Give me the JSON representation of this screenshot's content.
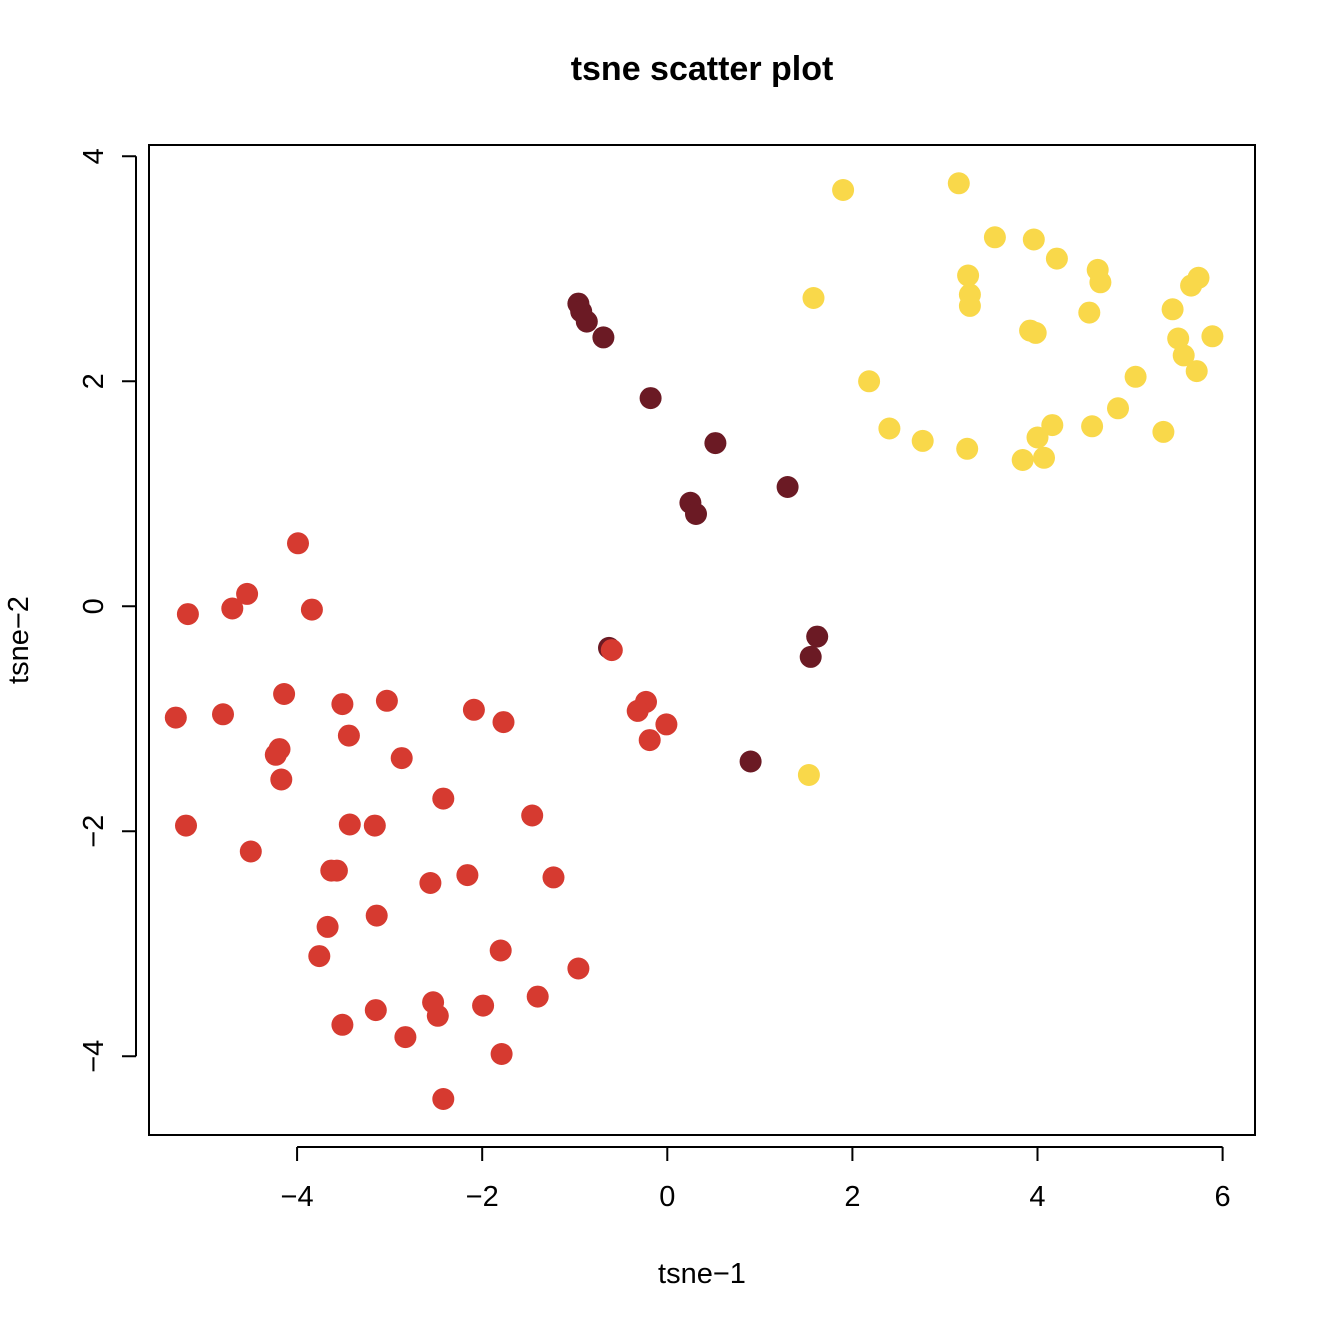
{
  "chart_data": {
    "type": "scatter",
    "title": "tsne scatter plot",
    "xlabel": "tsne−1",
    "ylabel": "tsne−2",
    "xlim": [
      -5.6,
      6.35
    ],
    "ylim": [
      -4.7,
      4.1
    ],
    "xticks": [
      -4,
      -2,
      0,
      2,
      4,
      6
    ],
    "yticks": [
      -4,
      -2,
      0,
      2,
      4
    ],
    "xtick_labels": [
      "−4",
      "−2",
      "0",
      "2",
      "4",
      "6"
    ],
    "ytick_labels": [
      "−4",
      "−2",
      "0",
      "2",
      "4"
    ],
    "grid": false,
    "series": [
      {
        "color": "#6B1A24",
        "points": [
          [
            -0.96,
            2.69
          ],
          [
            -0.93,
            2.62
          ],
          [
            -0.87,
            2.53
          ],
          [
            -0.69,
            2.39
          ],
          [
            -0.18,
            1.85
          ],
          [
            0.52,
            1.45
          ],
          [
            0.25,
            0.92
          ],
          [
            0.31,
            0.82
          ],
          [
            1.3,
            1.06
          ],
          [
            1.62,
            -0.27
          ],
          [
            1.55,
            -0.45
          ],
          [
            -0.63,
            -0.37
          ],
          [
            0.9,
            -1.38
          ]
        ]
      },
      {
        "color": "#D63A30",
        "points": [
          [
            -3.99,
            0.56
          ],
          [
            -4.54,
            0.11
          ],
          [
            -4.7,
            -0.02
          ],
          [
            -3.84,
            -0.03
          ],
          [
            -5.18,
            -0.07
          ],
          [
            -4.14,
            -0.78
          ],
          [
            -3.51,
            -0.87
          ],
          [
            -3.03,
            -0.84
          ],
          [
            -5.31,
            -0.99
          ],
          [
            -4.8,
            -0.96
          ],
          [
            -3.44,
            -1.15
          ],
          [
            -4.19,
            -1.27
          ],
          [
            -4.23,
            -1.32
          ],
          [
            -4.17,
            -1.54
          ],
          [
            -2.87,
            -1.35
          ],
          [
            -2.09,
            -0.92
          ],
          [
            -1.77,
            -1.03
          ],
          [
            -2.42,
            -1.71
          ],
          [
            -3.43,
            -1.94
          ],
          [
            -3.16,
            -1.95
          ],
          [
            -5.2,
            -1.95
          ],
          [
            -1.46,
            -1.86
          ],
          [
            -4.5,
            -2.18
          ],
          [
            -3.63,
            -2.35
          ],
          [
            -3.57,
            -2.35
          ],
          [
            -2.56,
            -2.46
          ],
          [
            -2.16,
            -2.39
          ],
          [
            -1.23,
            -2.41
          ],
          [
            -3.14,
            -2.75
          ],
          [
            -3.67,
            -2.85
          ],
          [
            -3.76,
            -3.11
          ],
          [
            -1.8,
            -3.06
          ],
          [
            -0.96,
            -3.22
          ],
          [
            -2.53,
            -3.52
          ],
          [
            -1.99,
            -3.55
          ],
          [
            -1.4,
            -3.47
          ],
          [
            -3.15,
            -3.59
          ],
          [
            -3.51,
            -3.72
          ],
          [
            -2.48,
            -3.64
          ],
          [
            -2.83,
            -3.83
          ],
          [
            -1.79,
            -3.98
          ],
          [
            -2.42,
            -4.38
          ],
          [
            -0.6,
            -0.39
          ],
          [
            -0.23,
            -0.85
          ],
          [
            -0.32,
            -0.93
          ],
          [
            -0.19,
            -1.19
          ],
          [
            -0.01,
            -1.05
          ]
        ]
      },
      {
        "color": "#F9D84A",
        "points": [
          [
            1.9,
            3.7
          ],
          [
            3.15,
            3.76
          ],
          [
            3.54,
            3.28
          ],
          [
            3.96,
            3.26
          ],
          [
            4.21,
            3.09
          ],
          [
            4.65,
            2.99
          ],
          [
            4.68,
            2.88
          ],
          [
            3.25,
            2.94
          ],
          [
            3.27,
            2.77
          ],
          [
            3.27,
            2.67
          ],
          [
            1.58,
            2.74
          ],
          [
            3.92,
            2.45
          ],
          [
            3.98,
            2.43
          ],
          [
            4.56,
            2.61
          ],
          [
            5.46,
            2.64
          ],
          [
            5.66,
            2.85
          ],
          [
            5.74,
            2.92
          ],
          [
            5.52,
            2.38
          ],
          [
            5.58,
            2.23
          ],
          [
            5.89,
            2.4
          ],
          [
            5.72,
            2.09
          ],
          [
            5.06,
            2.04
          ],
          [
            2.18,
            2.0
          ],
          [
            4.87,
            1.76
          ],
          [
            2.4,
            1.58
          ],
          [
            2.76,
            1.47
          ],
          [
            3.24,
            1.4
          ],
          [
            4.0,
            1.5
          ],
          [
            4.16,
            1.61
          ],
          [
            4.59,
            1.6
          ],
          [
            5.36,
            1.55
          ],
          [
            3.84,
            1.3
          ],
          [
            4.07,
            1.32
          ],
          [
            1.53,
            -1.5
          ]
        ]
      }
    ]
  }
}
